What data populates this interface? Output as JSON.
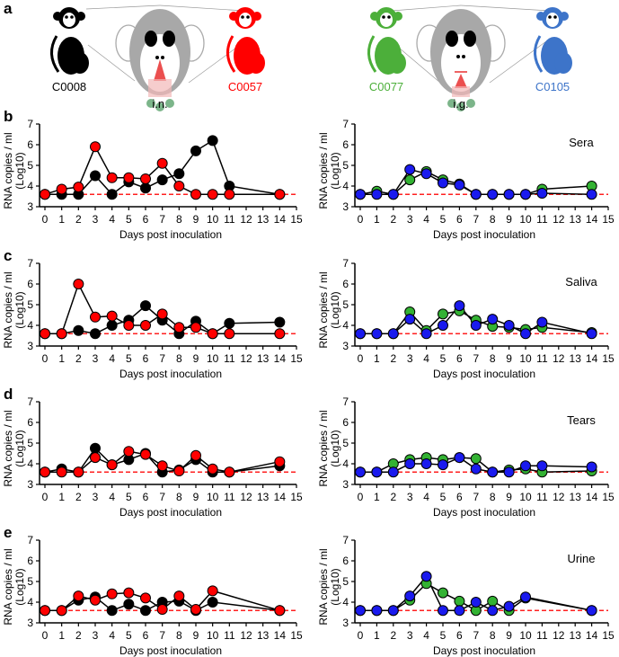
{
  "panel_labels": [
    "a",
    "b",
    "c",
    "d",
    "e"
  ],
  "illustration": {
    "animals": [
      {
        "id": "C0008",
        "color": "#000000"
      },
      {
        "id": "C0057",
        "color": "#ff0000"
      },
      {
        "id": "C0077",
        "color": "#4caf3a"
      },
      {
        "id": "C0105",
        "color": "#3d74c9"
      }
    ],
    "routes": [
      "i.n.",
      "i.g."
    ]
  },
  "chart_data": [
    {
      "type": "line",
      "row": "b",
      "side": "left",
      "title": "",
      "xlabel": "Days post inoculation",
      "ylabel": "RNA copies / ml",
      "ylabel_unit": "(Log10)",
      "xlim": [
        0,
        15
      ],
      "ylim": [
        3,
        7
      ],
      "xticks": [
        0,
        1,
        2,
        3,
        4,
        5,
        6,
        7,
        8,
        9,
        10,
        11,
        12,
        13,
        14,
        15
      ],
      "yticks": [
        3,
        4,
        5,
        6,
        7
      ],
      "detection_limit": 3.6,
      "x": [
        0,
        1,
        2,
        3,
        4,
        5,
        6,
        7,
        8,
        9,
        10,
        11,
        14
      ],
      "series": [
        {
          "color": "#000000",
          "values": [
            3.6,
            3.6,
            3.6,
            4.5,
            3.6,
            4.2,
            3.9,
            4.3,
            4.6,
            5.7,
            6.2,
            4.0,
            3.6
          ]
        },
        {
          "color": "#ff0000",
          "values": [
            3.6,
            3.85,
            3.95,
            5.9,
            4.4,
            4.4,
            4.35,
            5.1,
            4.0,
            3.6,
            3.6,
            3.6,
            3.6
          ]
        }
      ]
    },
    {
      "type": "line",
      "row": "b",
      "side": "right",
      "title": "Sera",
      "xlabel": "Days post inoculation",
      "ylabel": "RNA copies / ml",
      "ylabel_unit": "(Log10)",
      "xlim": [
        0,
        15
      ],
      "ylim": [
        3,
        7
      ],
      "xticks": [
        0,
        1,
        2,
        3,
        4,
        5,
        6,
        7,
        8,
        9,
        10,
        11,
        12,
        13,
        14,
        15
      ],
      "yticks": [
        3,
        4,
        5,
        6,
        7
      ],
      "detection_limit": 3.6,
      "x": [
        0,
        1,
        2,
        3,
        4,
        5,
        6,
        7,
        8,
        9,
        10,
        11,
        14
      ],
      "series": [
        {
          "color": "#33b233",
          "values": [
            3.6,
            3.75,
            3.6,
            4.3,
            4.7,
            4.3,
            4.1,
            3.6,
            3.6,
            3.6,
            3.6,
            3.85,
            4.0
          ]
        },
        {
          "color": "#1a1aee",
          "values": [
            3.6,
            3.6,
            3.6,
            4.8,
            4.6,
            4.15,
            4.05,
            3.6,
            3.6,
            3.6,
            3.6,
            3.65,
            3.6
          ]
        }
      ]
    },
    {
      "type": "line",
      "row": "c",
      "side": "left",
      "title": "",
      "xlabel": "Days post inoculation",
      "ylabel": "RNA copies / ml",
      "ylabel_unit": "(Log10)",
      "xlim": [
        0,
        15
      ],
      "ylim": [
        3,
        7
      ],
      "xticks": [
        0,
        1,
        2,
        3,
        4,
        5,
        6,
        7,
        8,
        9,
        10,
        11,
        12,
        13,
        14,
        15
      ],
      "yticks": [
        3,
        4,
        5,
        6,
        7
      ],
      "detection_limit": 3.6,
      "x": [
        0,
        1,
        2,
        3,
        4,
        5,
        6,
        7,
        8,
        9,
        10,
        11,
        14
      ],
      "series": [
        {
          "color": "#000000",
          "values": [
            3.6,
            3.6,
            3.75,
            3.6,
            4.0,
            4.25,
            4.95,
            4.25,
            3.6,
            4.2,
            3.6,
            4.1,
            4.15
          ]
        },
        {
          "color": "#ff0000",
          "values": [
            3.6,
            3.6,
            6.0,
            4.4,
            4.45,
            4.0,
            4.0,
            4.55,
            3.9,
            3.9,
            3.6,
            3.6,
            3.6
          ]
        }
      ]
    },
    {
      "type": "line",
      "row": "c",
      "side": "right",
      "title": "Saliva",
      "xlabel": "Days post inoculation",
      "ylabel": "RNA copies / ml",
      "ylabel_unit": "(Log10)",
      "xlim": [
        0,
        15
      ],
      "ylim": [
        3,
        7
      ],
      "xticks": [
        0,
        1,
        2,
        3,
        4,
        5,
        6,
        7,
        8,
        9,
        10,
        11,
        12,
        13,
        14,
        15
      ],
      "yticks": [
        3,
        4,
        5,
        6,
        7
      ],
      "detection_limit": 3.6,
      "x": [
        0,
        1,
        2,
        3,
        4,
        5,
        6,
        7,
        8,
        9,
        10,
        11,
        14
      ],
      "series": [
        {
          "color": "#33b233",
          "values": [
            3.6,
            3.6,
            3.6,
            4.65,
            3.75,
            4.55,
            4.7,
            4.25,
            3.95,
            3.9,
            3.8,
            3.9,
            3.65
          ]
        },
        {
          "color": "#1a1aee",
          "values": [
            3.6,
            3.6,
            3.6,
            4.3,
            3.6,
            4.0,
            4.95,
            4.0,
            4.3,
            4.0,
            3.6,
            4.15,
            3.6
          ]
        }
      ]
    },
    {
      "type": "line",
      "row": "d",
      "side": "left",
      "title": "",
      "xlabel": "Days post inoculation",
      "ylabel": "RNA copies / ml",
      "ylabel_unit": "(Log10)",
      "xlim": [
        0,
        15
      ],
      "ylim": [
        3,
        7
      ],
      "xticks": [
        0,
        1,
        2,
        3,
        4,
        5,
        6,
        7,
        8,
        9,
        10,
        11,
        12,
        13,
        14,
        15
      ],
      "yticks": [
        3,
        4,
        5,
        6,
        7
      ],
      "detection_limit": 3.6,
      "x": [
        0,
        1,
        2,
        3,
        4,
        5,
        6,
        7,
        8,
        9,
        10,
        11,
        14
      ],
      "series": [
        {
          "color": "#000000",
          "values": [
            3.6,
            3.75,
            3.6,
            4.75,
            3.95,
            4.2,
            4.5,
            3.6,
            3.7,
            4.2,
            3.6,
            3.6,
            3.9
          ]
        },
        {
          "color": "#ff0000",
          "values": [
            3.6,
            3.6,
            3.6,
            4.3,
            3.95,
            4.6,
            4.45,
            3.9,
            3.65,
            4.4,
            3.75,
            3.6,
            4.1
          ]
        }
      ]
    },
    {
      "type": "line",
      "row": "d",
      "side": "right",
      "title": "Tears",
      "xlabel": "Days post inoculation",
      "ylabel": "RNA copies / ml",
      "ylabel_unit": "(Log10)",
      "xlim": [
        0,
        15
      ],
      "ylim": [
        3,
        7
      ],
      "xticks": [
        0,
        1,
        2,
        3,
        4,
        5,
        6,
        7,
        8,
        9,
        10,
        11,
        12,
        13,
        14,
        15
      ],
      "yticks": [
        3,
        4,
        5,
        6,
        7
      ],
      "detection_limit": 3.6,
      "x": [
        0,
        1,
        2,
        3,
        4,
        5,
        6,
        7,
        8,
        9,
        10,
        11,
        14
      ],
      "series": [
        {
          "color": "#33b233",
          "values": [
            3.6,
            3.6,
            4.0,
            4.2,
            4.3,
            4.2,
            4.3,
            4.25,
            3.6,
            3.7,
            3.75,
            3.6,
            3.65
          ]
        },
        {
          "color": "#1a1aee",
          "values": [
            3.6,
            3.6,
            3.6,
            4.0,
            4.0,
            3.95,
            4.3,
            3.75,
            3.6,
            3.6,
            3.9,
            3.9,
            3.85
          ]
        }
      ]
    },
    {
      "type": "line",
      "row": "e",
      "side": "left",
      "title": "",
      "xlabel": "Days post inoculation",
      "ylabel": "RNA copies / ml",
      "ylabel_unit": "(Log10)",
      "xlim": [
        0,
        15
      ],
      "ylim": [
        3,
        7
      ],
      "xticks": [
        0,
        1,
        2,
        3,
        4,
        5,
        6,
        7,
        8,
        9,
        10,
        11,
        12,
        13,
        14,
        15
      ],
      "yticks": [
        3,
        4,
        5,
        6,
        7
      ],
      "detection_limit": 3.6,
      "x": [
        0,
        1,
        2,
        3,
        4,
        5,
        6,
        7,
        8,
        9,
        10,
        14
      ],
      "series": [
        {
          "color": "#000000",
          "values": [
            3.6,
            3.6,
            4.1,
            4.25,
            3.6,
            3.9,
            3.6,
            4.0,
            4.05,
            3.6,
            4.0,
            3.6
          ]
        },
        {
          "color": "#ff0000",
          "values": [
            3.6,
            3.6,
            4.3,
            4.1,
            4.4,
            4.45,
            4.2,
            3.65,
            4.3,
            3.65,
            4.55,
            3.6
          ]
        }
      ]
    },
    {
      "type": "line",
      "row": "e",
      "side": "right",
      "title": "Urine",
      "xlabel": "Days post inoculation",
      "ylabel": "RNA copies / ml",
      "ylabel_unit": "(Log10)",
      "xlim": [
        0,
        15
      ],
      "ylim": [
        3,
        7
      ],
      "xticks": [
        0,
        1,
        2,
        3,
        4,
        5,
        6,
        7,
        8,
        9,
        10,
        11,
        12,
        13,
        14,
        15
      ],
      "yticks": [
        3,
        4,
        5,
        6,
        7
      ],
      "detection_limit": 3.6,
      "x": [
        0,
        1,
        2,
        3,
        4,
        5,
        6,
        7,
        8,
        9,
        10,
        14
      ],
      "series": [
        {
          "color": "#33b233",
          "values": [
            3.6,
            3.6,
            3.6,
            4.1,
            4.9,
            4.45,
            4.05,
            3.6,
            4.05,
            3.6,
            4.2,
            3.6
          ]
        },
        {
          "color": "#1a1aee",
          "values": [
            3.6,
            3.6,
            3.6,
            4.3,
            5.25,
            3.6,
            3.6,
            4.0,
            3.6,
            3.8,
            4.25,
            3.6
          ]
        }
      ]
    }
  ]
}
